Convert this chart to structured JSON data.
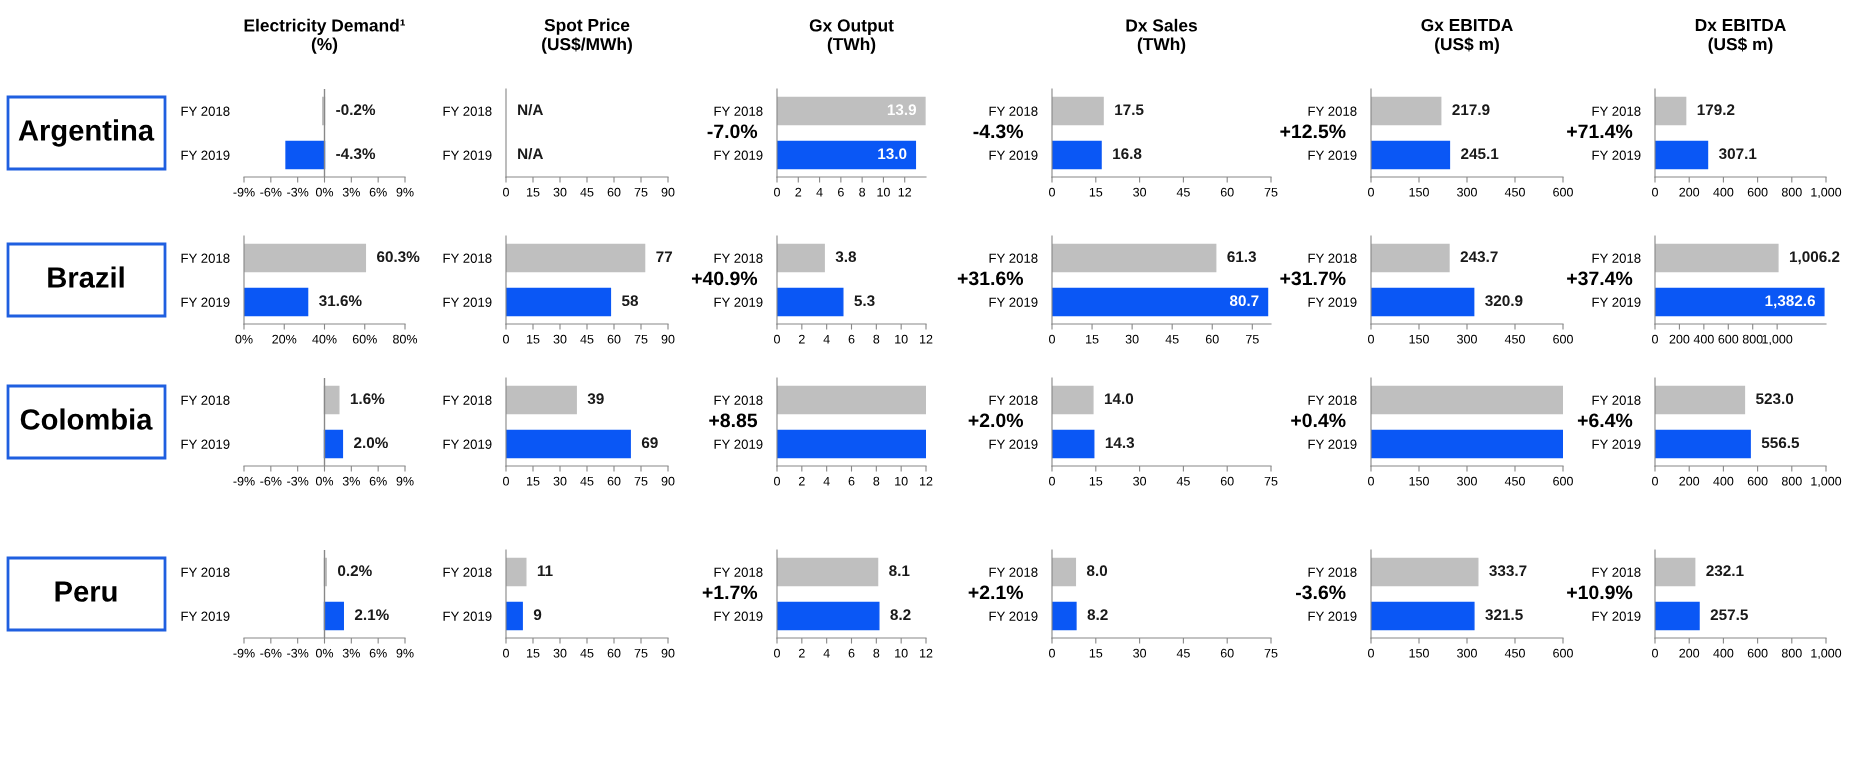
{
  "chart_data": [
    {
      "type": "bar",
      "orientation": "horizontal",
      "title": "Electricity Demand¹\n(%)",
      "ylabel": "Argentina",
      "categories": [
        "FY 2018",
        "FY 2019"
      ],
      "values": [
        -0.2,
        -4.3
      ],
      "colors": [
        "#bfbfbf",
        "#0a57f5"
      ],
      "value_labels": [
        "-0.2%",
        "-4.3%"
      ],
      "xlim": [
        -9,
        9
      ],
      "xticks": [
        {
          "value": -9,
          "label": "-9%"
        },
        {
          "value": -6,
          "label": "-6%"
        },
        {
          "value": -3,
          "label": "-3%"
        },
        {
          "value": 0,
          "label": "0%"
        },
        {
          "value": 3,
          "label": "3%"
        },
        {
          "value": 6,
          "label": "6%"
        },
        {
          "value": 9,
          "label": "9%"
        }
      ]
    },
    {
      "type": "bar",
      "orientation": "horizontal",
      "title": "Spot Price\n(US$/MWh)",
      "categories": [
        "FY 2018",
        "FY 2019"
      ],
      "values": [
        null,
        null
      ],
      "colors": [
        "#bfbfbf",
        "#0a57f5"
      ],
      "value_labels": [
        "N/A",
        "N/A"
      ],
      "xlim": [
        0,
        90
      ],
      "xticks": [
        0,
        15,
        30,
        45,
        60,
        75,
        90
      ]
    },
    {
      "type": "bar",
      "orientation": "horizontal",
      "title": "Gx Output\n(TWh)",
      "categories": [
        "FY 2018",
        "FY 2019"
      ],
      "values": [
        13.9,
        13.0
      ],
      "colors": [
        "#bfbfbf",
        "#0a57f5"
      ],
      "value_labels": [
        "13.9",
        "13.0"
      ],
      "annotations": [
        "-7.0%"
      ],
      "xlim": [
        0,
        14
      ],
      "xticks": [
        0,
        2,
        4,
        6,
        8,
        10,
        12
      ]
    },
    {
      "type": "bar",
      "orientation": "horizontal",
      "title": "Dx Sales\n(TWh)",
      "categories": [
        "FY 2018",
        "FY 2019"
      ],
      "values": [
        17.5,
        16.8
      ],
      "colors": [
        "#bfbfbf",
        "#0a57f5"
      ],
      "value_labels": [
        "17.5",
        "16.8"
      ],
      "annotations": [
        "-4.3%"
      ],
      "xlim": [
        0,
        75
      ],
      "xticks": [
        0,
        15,
        30,
        45,
        60,
        75
      ]
    },
    {
      "type": "bar",
      "orientation": "horizontal",
      "title": "Gx EBITDA\n(US$ m)",
      "categories": [
        "FY 2018",
        "FY 2019"
      ],
      "values": [
        217.9,
        245.1
      ],
      "colors": [
        "#bfbfbf",
        "#0a57f5"
      ],
      "value_labels": [
        "217.9",
        "245.1"
      ],
      "annotations": [
        "+12.5%"
      ],
      "xlim": [
        0,
        600
      ],
      "xticks": [
        0,
        150,
        300,
        450,
        600
      ]
    },
    {
      "type": "bar",
      "orientation": "horizontal",
      "title": "Dx EBITDA\n(US$ m)",
      "categories": [
        "FY 2018",
        "FY 2019"
      ],
      "values": [
        179.2,
        307.1
      ],
      "colors": [
        "#bfbfbf",
        "#0a57f5"
      ],
      "value_labels": [
        "179.2",
        "307.1"
      ],
      "annotations": [
        "+71.4%"
      ],
      "xlim": [
        0,
        1000
      ],
      "xticks": [
        0,
        200,
        400,
        600,
        800,
        {
          "value": 1000,
          "label": "1,000"
        }
      ]
    },
    {
      "type": "bar",
      "orientation": "horizontal",
      "ylabel": "Brazil",
      "categories": [
        "FY 2018",
        "FY 2019"
      ],
      "values": [
        60.3,
        31.6
      ],
      "colors": [
        "#bfbfbf",
        "#0a57f5"
      ],
      "value_labels": [
        "60.3%",
        "31.6%"
      ],
      "xlim": [
        0,
        80
      ],
      "xticks": [
        {
          "value": 0,
          "label": "0%"
        },
        {
          "value": 20,
          "label": "20%"
        },
        {
          "value": 40,
          "label": "40%"
        },
        {
          "value": 60,
          "label": "60%"
        },
        {
          "value": 80,
          "label": "80%"
        }
      ]
    },
    {
      "type": "bar",
      "orientation": "horizontal",
      "categories": [
        "FY 2018",
        "FY 2019"
      ],
      "values": [
        77,
        58
      ],
      "colors": [
        "#bfbfbf",
        "#0a57f5"
      ],
      "data_labels": true,
      "xlim": [
        0,
        90
      ],
      "xticks": [
        0,
        15,
        30,
        45,
        60,
        75,
        90
      ]
    },
    {
      "type": "bar",
      "orientation": "horizontal",
      "categories": [
        "FY 2018",
        "FY 2019"
      ],
      "values": [
        3.8,
        5.3
      ],
      "colors": [
        "#bfbfbf",
        "#0a57f5"
      ],
      "value_labels": [
        "3.8",
        "5.3"
      ],
      "annotations": [
        "+40.9%"
      ],
      "xlim": [
        0,
        12
      ],
      "xticks": [
        0,
        2,
        4,
        6,
        8,
        10,
        12
      ]
    },
    {
      "type": "bar",
      "orientation": "horizontal",
      "categories": [
        "FY 2018",
        "FY 2019"
      ],
      "values": [
        61.3,
        80.7
      ],
      "colors": [
        "#bfbfbf",
        "#0a57f5"
      ],
      "value_labels": [
        "61.3",
        "80.7"
      ],
      "annotations": [
        "+31.6%"
      ],
      "xlim": [
        0,
        82
      ],
      "xticks": [
        0,
        15,
        30,
        45,
        60,
        75
      ]
    },
    {
      "type": "bar",
      "orientation": "horizontal",
      "categories": [
        "FY 2018",
        "FY 2019"
      ],
      "values": [
        243.7,
        320.9
      ],
      "colors": [
        "#bfbfbf",
        "#0a57f5"
      ],
      "value_labels": [
        "243.7",
        "320.9"
      ],
      "annotations": [
        "+31.7%"
      ],
      "xlim": [
        0,
        600
      ],
      "xticks": [
        0,
        150,
        300,
        450,
        600
      ]
    },
    {
      "type": "bar",
      "orientation": "horizontal",
      "categories": [
        "FY 2018",
        "FY 2019"
      ],
      "values": [
        1006.2,
        1382.6
      ],
      "colors": [
        "#bfbfbf",
        "#0a57f5"
      ],
      "value_labels": [
        "1,006.2",
        "1,382.6"
      ],
      "annotations": [
        "+37.4%"
      ],
      "xlim": [
        0,
        1400
      ],
      "xticks": [
        0,
        200,
        400,
        600,
        800,
        {
          "value": 1000,
          "label": "1,000"
        }
      ]
    },
    {
      "type": "bar",
      "orientation": "horizontal",
      "ylabel": "Colombia",
      "categories": [
        "FY 2018",
        "FY 2019"
      ],
      "values": [
        1.6,
        2.0
      ],
      "colors": [
        "#bfbfbf",
        "#0a57f5"
      ],
      "value_labels": [
        "1.6%",
        "2.0%"
      ],
      "xlim": [
        -9,
        9
      ],
      "xticks": [
        {
          "value": -9,
          "label": "-9%"
        },
        {
          "value": -6,
          "label": "-6%"
        },
        {
          "value": -3,
          "label": "-3%"
        },
        {
          "value": 0,
          "label": "0%"
        },
        {
          "value": 3,
          "label": "3%"
        },
        {
          "value": 6,
          "label": "6%"
        },
        {
          "value": 9,
          "label": "9%"
        }
      ]
    },
    {
      "type": "bar",
      "orientation": "horizontal",
      "categories": [
        "FY 2018",
        "FY 2019"
      ],
      "values": [
        39,
        69
      ],
      "colors": [
        "#bfbfbf",
        "#0a57f5"
      ],
      "data_labels": true,
      "xlim": [
        0,
        90
      ],
      "xticks": [
        0,
        15,
        30,
        45,
        60,
        75,
        90
      ]
    },
    {
      "type": "bar",
      "orientation": "horizontal",
      "categories": [
        "FY 2018",
        "FY 2019"
      ],
      "values": [
        12,
        12
      ],
      "colors": [
        "#bfbfbf",
        "#0a57f5"
      ],
      "annotations": [
        "+8.85"
      ],
      "xlim": [
        0,
        12
      ],
      "xticks": [
        0,
        2,
        4,
        6,
        8,
        10,
        12
      ]
    },
    {
      "type": "bar",
      "orientation": "horizontal",
      "categories": [
        "FY 2018",
        "FY 2019"
      ],
      "values": [
        14.0,
        14.3
      ],
      "colors": [
        "#bfbfbf",
        "#0a57f5"
      ],
      "value_labels": [
        "14.0",
        "14.3"
      ],
      "annotations": [
        "+2.0%"
      ],
      "xlim": [
        0,
        75
      ],
      "xticks": [
        0,
        15,
        30,
        45,
        60,
        75
      ]
    },
    {
      "type": "bar",
      "orientation": "horizontal",
      "categories": [
        "FY 2018",
        "FY 2019"
      ],
      "values": [
        600,
        600
      ],
      "colors": [
        "#bfbfbf",
        "#0a57f5"
      ],
      "annotations": [
        "+0.4%"
      ],
      "xlim": [
        0,
        600
      ],
      "xticks": [
        0,
        150,
        300,
        450,
        600
      ]
    },
    {
      "type": "bar",
      "orientation": "horizontal",
      "categories": [
        "FY 2018",
        "FY 2019"
      ],
      "values": [
        523.0,
        556.5
      ],
      "colors": [
        "#bfbfbf",
        "#0a57f5"
      ],
      "value_labels": [
        "523.0",
        "556.5"
      ],
      "annotations": [
        "+6.4%"
      ],
      "xlim": [
        0,
        1000
      ],
      "xticks": [
        0,
        200,
        400,
        600,
        800,
        {
          "value": 1000,
          "label": "1,000"
        }
      ]
    },
    {
      "type": "bar",
      "orientation": "horizontal",
      "ylabel": "Peru",
      "categories": [
        "FY 2018",
        "FY 2019"
      ],
      "values": [
        0.2,
        2.1
      ],
      "colors": [
        "#bfbfbf",
        "#0a57f5"
      ],
      "value_labels": [
        "0.2%",
        "2.1%"
      ],
      "xlim": [
        -9,
        9
      ],
      "xticks": [
        {
          "value": -9,
          "label": "-9%"
        },
        {
          "value": -6,
          "label": "-6%"
        },
        {
          "value": -3,
          "label": "-3%"
        },
        {
          "value": 0,
          "label": "0%"
        },
        {
          "value": 3,
          "label": "3%"
        },
        {
          "value": 6,
          "label": "6%"
        },
        {
          "value": 9,
          "label": "9%"
        }
      ]
    },
    {
      "type": "bar",
      "orientation": "horizontal",
      "categories": [
        "FY 2018",
        "FY 2019"
      ],
      "values": [
        11,
        9
      ],
      "colors": [
        "#bfbfbf",
        "#0a57f5"
      ],
      "data_labels": true,
      "xlim": [
        0,
        90
      ],
      "xticks": [
        0,
        15,
        30,
        45,
        60,
        75,
        90
      ]
    },
    {
      "type": "bar",
      "orientation": "horizontal",
      "categories": [
        "FY 2018",
        "FY 2019"
      ],
      "values": [
        8.1,
        8.2
      ],
      "colors": [
        "#bfbfbf",
        "#0a57f5"
      ],
      "value_labels": [
        "8.1",
        "8.2"
      ],
      "annotations": [
        "+1.7%"
      ],
      "xlim": [
        0,
        12
      ],
      "xticks": [
        0,
        2,
        4,
        6,
        8,
        10,
        12
      ]
    },
    {
      "type": "bar",
      "orientation": "horizontal",
      "categories": [
        "FY 2018",
        "FY 2019"
      ],
      "values": [
        8.0,
        8.2
      ],
      "colors": [
        "#bfbfbf",
        "#0a57f5"
      ],
      "value_labels": [
        "8.0",
        "8.2"
      ],
      "annotations": [
        "+2.1%"
      ],
      "xlim": [
        0,
        75
      ],
      "xticks": [
        0,
        15,
        30,
        45,
        60,
        75
      ]
    },
    {
      "type": "bar",
      "orientation": "horizontal",
      "categories": [
        "FY 2018",
        "FY 2019"
      ],
      "values": [
        333.7,
        321.5
      ],
      "colors": [
        "#bfbfbf",
        "#0a57f5"
      ],
      "value_labels": [
        "333.7",
        "321.5"
      ],
      "annotations": [
        "-3.6%"
      ],
      "xlim": [
        0,
        600
      ],
      "xticks": [
        0,
        150,
        300,
        450,
        600
      ]
    },
    {
      "type": "bar",
      "orientation": "horizontal",
      "categories": [
        "FY 2018",
        "FY 2019"
      ],
      "values": [
        232.1,
        257.5
      ],
      "colors": [
        "#bfbfbf",
        "#0a57f5"
      ],
      "value_labels": [
        "232.1",
        "257.5"
      ],
      "annotations": [
        "+10.9%"
      ],
      "xlim": [
        0,
        1000
      ],
      "xticks": [
        0,
        200,
        400,
        600,
        800,
        {
          "value": 1000,
          "label": "1,000"
        }
      ]
    }
  ]
}
